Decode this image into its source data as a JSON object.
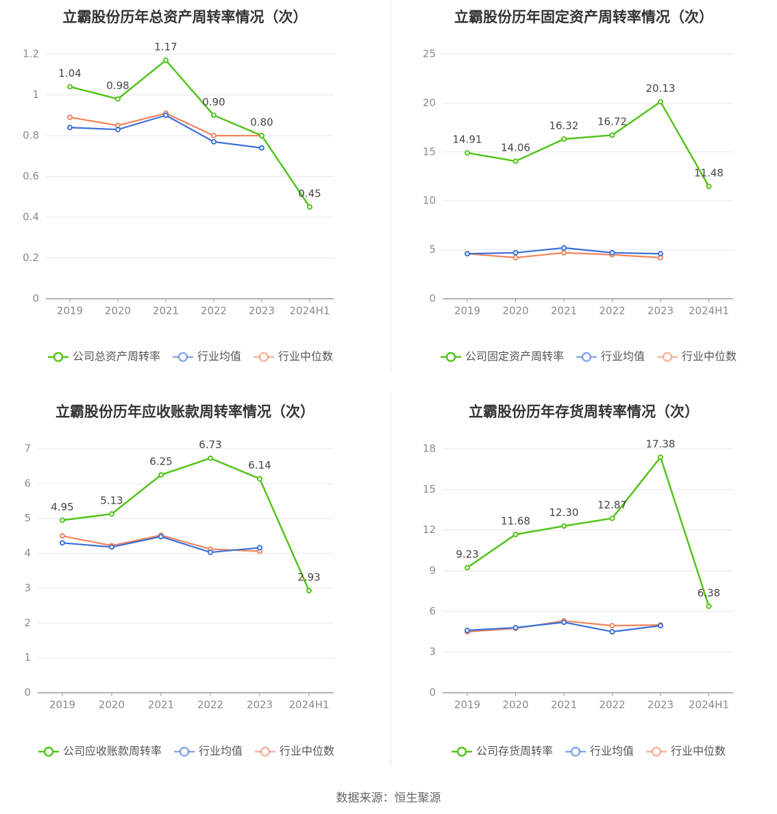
{
  "source_label": "数据来源：恒生聚源",
  "chart_data": [
    {
      "type": "line",
      "title": "立霸股份历年总资产周转率情况（次）",
      "categories": [
        "2019",
        "2020",
        "2021",
        "2022",
        "2023",
        "2024H1"
      ],
      "ylim": [
        0,
        1.2
      ],
      "yticks": [
        "0",
        "0.2",
        "0.4",
        "0.6",
        "0.8",
        "1",
        "1.2"
      ],
      "ytick_values": [
        0,
        0.2,
        0.4,
        0.6,
        0.8,
        1.0,
        1.2
      ],
      "grid": true,
      "legend_position": "bottom",
      "series": [
        {
          "name": "公司总资产周转率",
          "color": "#52c41a",
          "values": [
            1.04,
            0.98,
            1.17,
            0.9,
            0.8,
            0.45
          ],
          "labels": [
            "1.04",
            "0.98",
            "1.17",
            "0.90",
            "0.80",
            "0.45"
          ]
        },
        {
          "name": "行业均值",
          "color": "#3a6fd8",
          "values": [
            0.84,
            0.83,
            0.9,
            0.77,
            0.74,
            null
          ]
        },
        {
          "name": "行业中位数",
          "color": "#f0845a",
          "values": [
            0.89,
            0.85,
            0.91,
            0.8,
            0.8,
            null
          ]
        }
      ]
    },
    {
      "type": "line",
      "title": "立霸股份历年固定资产周转率情况（次）",
      "categories": [
        "2019",
        "2020",
        "2021",
        "2022",
        "2023",
        "2024H1"
      ],
      "ylim": [
        0,
        25
      ],
      "yticks": [
        "0",
        "5",
        "10",
        "15",
        "20",
        "25"
      ],
      "ytick_values": [
        0,
        5,
        10,
        15,
        20,
        25
      ],
      "grid": true,
      "legend_position": "bottom",
      "series": [
        {
          "name": "公司固定资产周转率",
          "color": "#52c41a",
          "values": [
            14.91,
            14.06,
            16.32,
            16.72,
            20.13,
            11.48
          ],
          "labels": [
            "14.91",
            "14.06",
            "16.32",
            "16.72",
            "20.13",
            "11.48"
          ]
        },
        {
          "name": "行业均值",
          "color": "#3a6fd8",
          "values": [
            4.6,
            4.7,
            5.2,
            4.7,
            4.6,
            null
          ]
        },
        {
          "name": "行业中位数",
          "color": "#f0845a",
          "values": [
            4.6,
            4.2,
            4.7,
            4.5,
            4.2,
            null
          ]
        }
      ]
    },
    {
      "type": "line",
      "title": "立霸股份历年应收账款周转率情况（次）",
      "categories": [
        "2019",
        "2020",
        "2021",
        "2022",
        "2023",
        "2024H1"
      ],
      "ylim": [
        0,
        7
      ],
      "yticks": [
        "0",
        "1",
        "2",
        "3",
        "4",
        "5",
        "6",
        "7"
      ],
      "ytick_values": [
        0,
        1,
        2,
        3,
        4,
        5,
        6,
        7
      ],
      "grid": true,
      "legend_position": "bottom",
      "series": [
        {
          "name": "公司应收账款周转率",
          "color": "#52c41a",
          "values": [
            4.95,
            5.13,
            6.25,
            6.73,
            6.14,
            2.93
          ],
          "labels": [
            "4.95",
            "5.13",
            "6.25",
            "6.73",
            "6.14",
            "2.93"
          ]
        },
        {
          "name": "行业均值",
          "color": "#3a6fd8",
          "values": [
            4.3,
            4.18,
            4.48,
            4.03,
            4.16,
            null
          ]
        },
        {
          "name": "行业中位数",
          "color": "#f0845a",
          "values": [
            4.5,
            4.22,
            4.52,
            4.12,
            4.06,
            null
          ]
        }
      ]
    },
    {
      "type": "line",
      "title": "立霸股份历年存货周转率情况（次）",
      "categories": [
        "2019",
        "2020",
        "2021",
        "2022",
        "2023",
        "2024H1"
      ],
      "ylim": [
        0,
        18
      ],
      "yticks": [
        "0",
        "3",
        "6",
        "9",
        "12",
        "15",
        "18"
      ],
      "ytick_values": [
        0,
        3,
        6,
        9,
        12,
        15,
        18
      ],
      "grid": true,
      "legend_position": "bottom",
      "series": [
        {
          "name": "公司存货周转率",
          "color": "#52c41a",
          "values": [
            9.23,
            11.68,
            12.3,
            12.87,
            17.38,
            6.38
          ],
          "labels": [
            "9.23",
            "11.68",
            "12.30",
            "12.87",
            "17.38",
            "6.38"
          ]
        },
        {
          "name": "行业均值",
          "color": "#3a6fd8",
          "values": [
            4.6,
            4.8,
            5.2,
            4.5,
            4.95,
            null
          ]
        },
        {
          "name": "行业中位数",
          "color": "#f0845a",
          "values": [
            4.5,
            4.75,
            5.3,
            4.95,
            5.0,
            null
          ]
        }
      ]
    }
  ]
}
